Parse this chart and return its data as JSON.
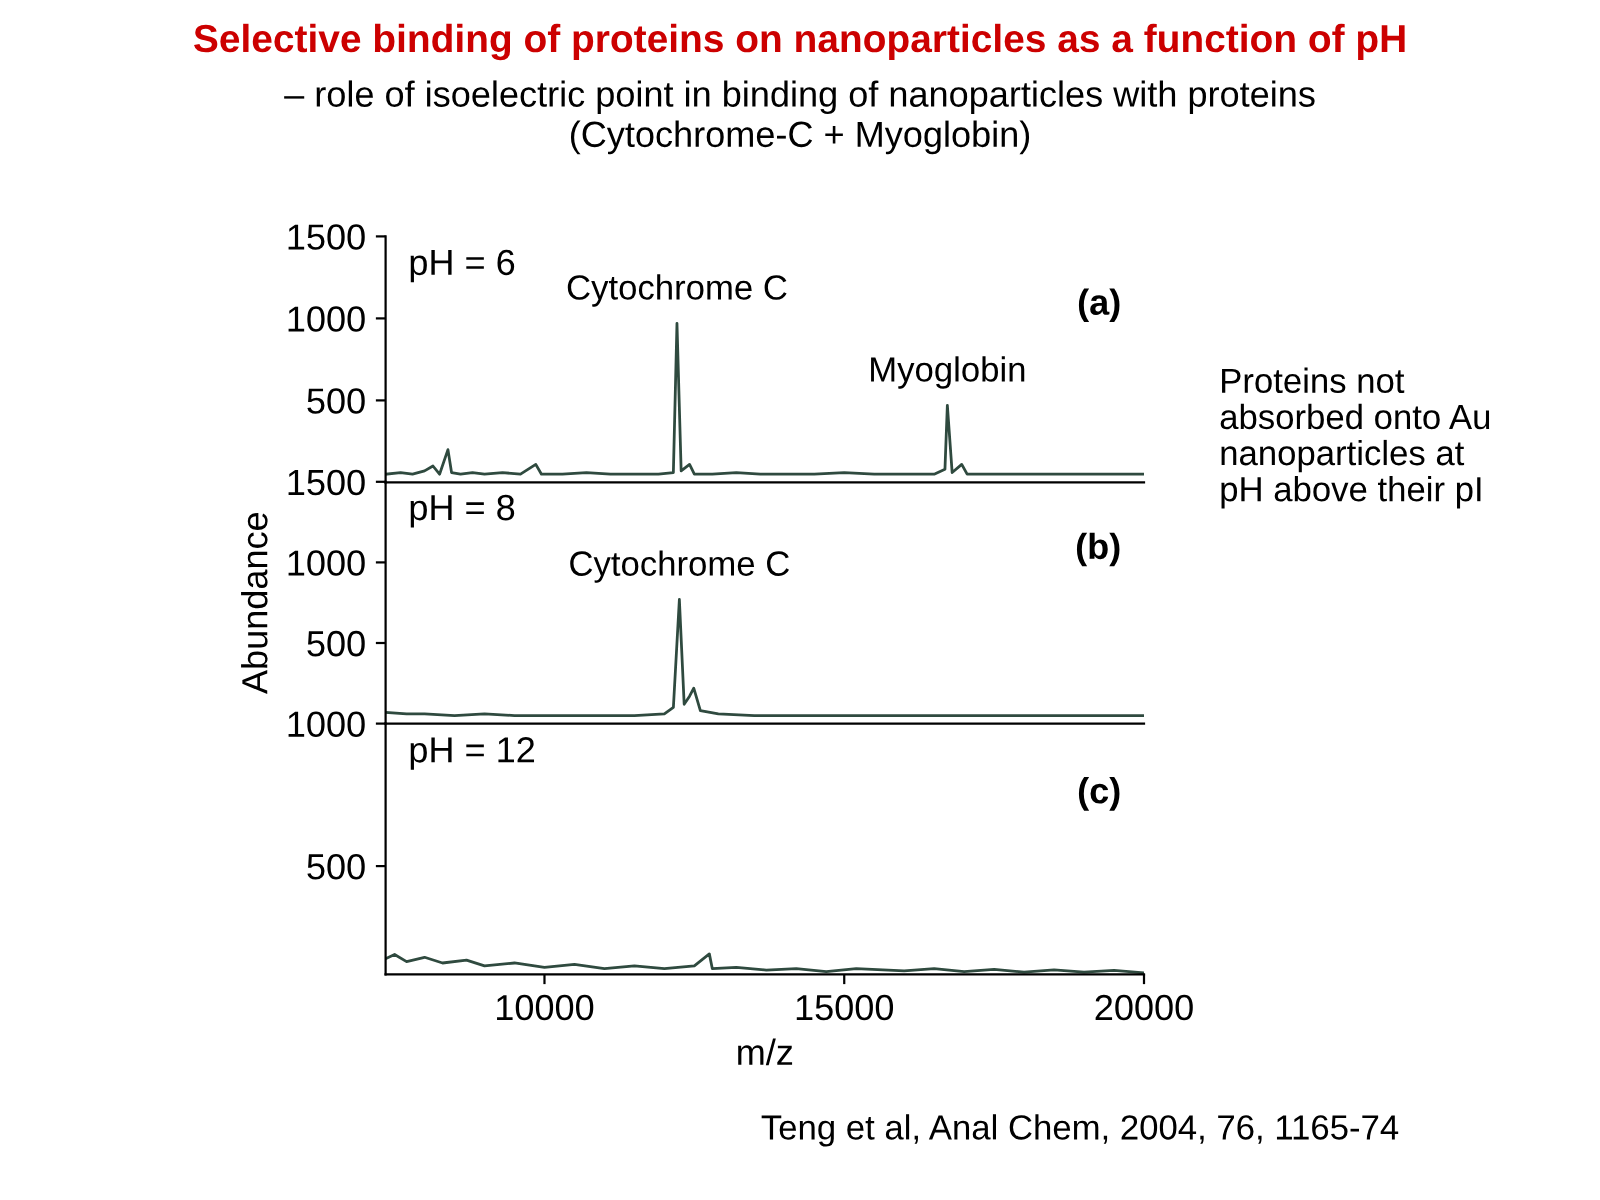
{
  "chart_data": [
    {
      "type": "line",
      "title": "Selective binding of proteins on nanoparticles as a function of pH",
      "subtitle": "– role of isoelectric point in binding of nanoparticles with proteins\n(Cytochrome-C + Myoglobin)",
      "x": [
        7350,
        7600,
        7800,
        8000,
        8140,
        8250,
        8390,
        8450,
        8600,
        8800,
        9000,
        9300,
        9600,
        9855,
        9950,
        10300,
        10700,
        11100,
        11500,
        11900,
        12150,
        12210,
        12280,
        12420,
        12500,
        12800,
        13200,
        13600,
        14000,
        14500,
        15000,
        15500,
        16000,
        16500,
        16680,
        16720,
        16800,
        16960,
        17050,
        17500,
        18000,
        18500,
        19000,
        19500,
        20000
      ],
      "series": [
        {
          "color": "#2f4a3f",
          "values": [
            50,
            60,
            50,
            70,
            100,
            50,
            200,
            60,
            50,
            60,
            50,
            60,
            50,
            110,
            50,
            50,
            60,
            50,
            50,
            50,
            60,
            970,
            70,
            110,
            50,
            50,
            60,
            50,
            50,
            50,
            60,
            50,
            50,
            50,
            80,
            470,
            60,
            110,
            50,
            50,
            50,
            50,
            50,
            50,
            50
          ]
        }
      ],
      "xlim": [
        7350,
        20000
      ],
      "ylim": [
        0,
        1500
      ],
      "yticks": [
        500,
        1000,
        1500
      ],
      "tick_labels": "y",
      "annotations": [
        "pH = 6",
        "(a)",
        "Proteins not\nabsorbed onto Au\nnanoparticles at\npH above their pI",
        {
          "text": "Cytochrome C",
          "x": 12210,
          "y": 970
        },
        {
          "text": "Myoglobin",
          "x": 16720,
          "y": 470
        }
      ]
    },
    {
      "type": "line",
      "ylabel": "Abundance",
      "x": [
        7350,
        7700,
        8000,
        8500,
        9000,
        9500,
        10000,
        10500,
        11000,
        11500,
        12000,
        12150,
        12250,
        12330,
        12420,
        12490,
        12600,
        12900,
        13500,
        14000,
        15000,
        16000,
        17000,
        18000,
        19000,
        20000
      ],
      "series": [
        {
          "color": "#2f4a3f",
          "values": [
            70,
            60,
            60,
            50,
            60,
            50,
            50,
            50,
            50,
            50,
            60,
            100,
            770,
            120,
            170,
            220,
            80,
            60,
            50,
            50,
            50,
            50,
            50,
            50,
            50,
            50
          ]
        }
      ],
      "xlim": [
        7350,
        20000
      ],
      "ylim": [
        0,
        1500
      ],
      "yticks": [
        500,
        1000,
        1500
      ],
      "tick_labels": "y",
      "annotations": [
        "pH = 8",
        "(b)",
        {
          "text": "Cytochrome C",
          "x": 12250,
          "y": 770
        }
      ]
    },
    {
      "type": "line",
      "xlabel": "m/z",
      "x": [
        7350,
        7500,
        7700,
        8000,
        8300,
        8700,
        9000,
        9500,
        10000,
        10500,
        11000,
        11500,
        12000,
        12500,
        12750,
        12800,
        13200,
        13700,
        14200,
        14700,
        15200,
        16000,
        16500,
        17000,
        17500,
        18000,
        18500,
        19000,
        19500,
        20000
      ],
      "series": [
        {
          "color": "#2f4a3f",
          "values": [
            175,
            190,
            165,
            180,
            160,
            170,
            150,
            160,
            145,
            155,
            140,
            150,
            140,
            150,
            192,
            140,
            145,
            135,
            140,
            130,
            140,
            132,
            140,
            130,
            138,
            128,
            136,
            128,
            134,
            125
          ]
        }
      ],
      "xlim": [
        7350,
        20000
      ],
      "ylim": [
        120,
        1000
      ],
      "xticks": [
        10000,
        15000,
        20000
      ],
      "yticks": [
        500,
        1000
      ],
      "annotations": [
        "pH = 12",
        "(c)",
        "Teng et al, Anal Chem, 2004, 76, 1165-74"
      ]
    }
  ]
}
